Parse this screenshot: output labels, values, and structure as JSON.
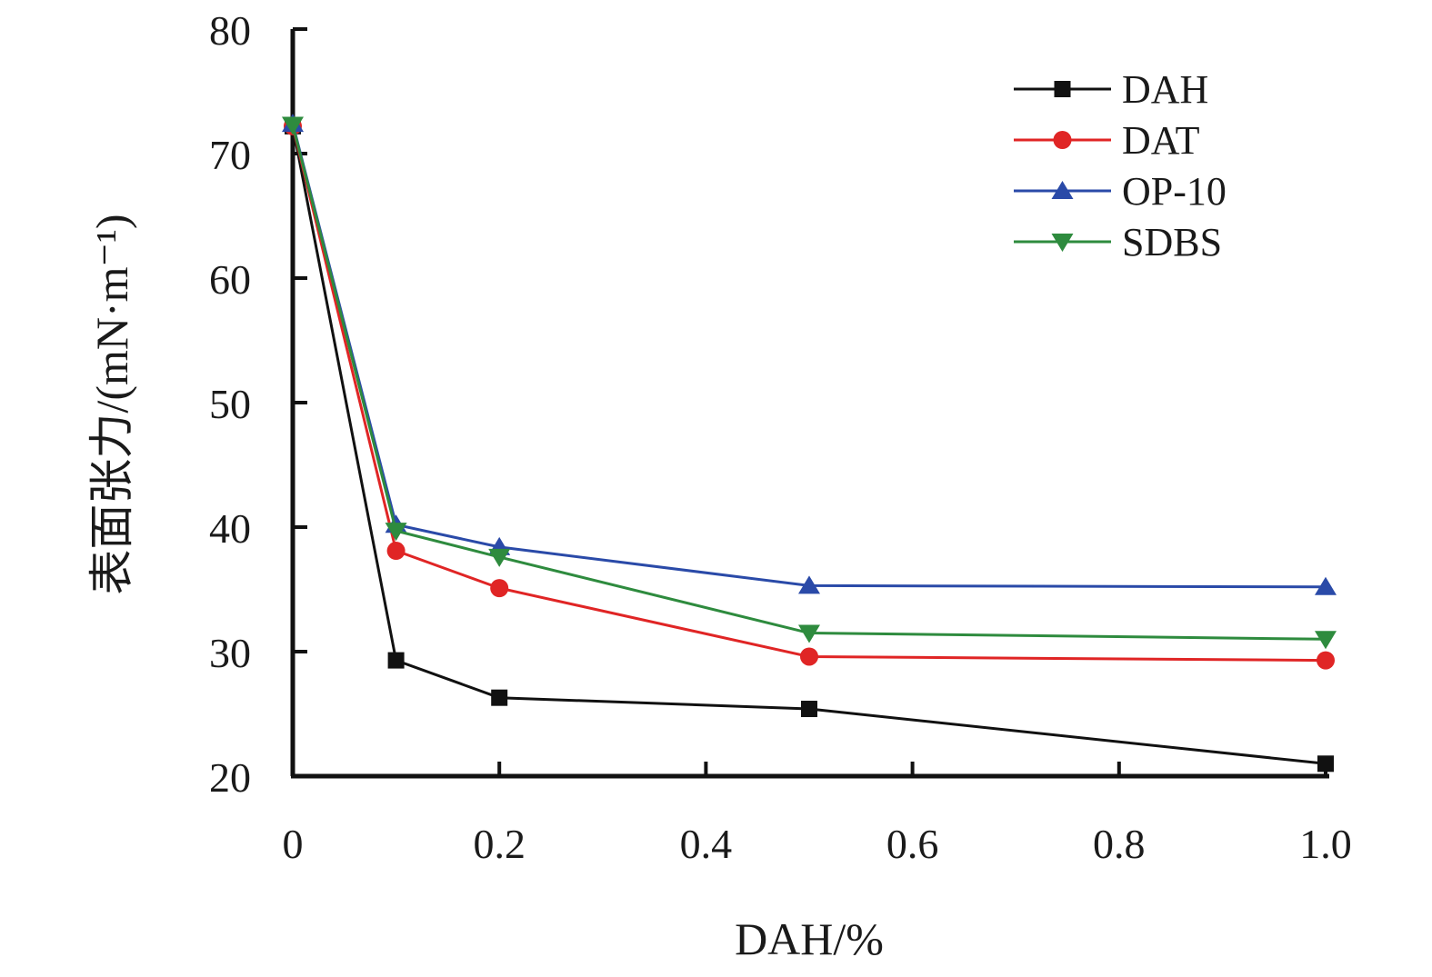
{
  "chart_data": {
    "type": "line",
    "title": "",
    "xlabel": "DAH/%",
    "ylabel": "表面张力/(mN·m⁻¹)",
    "xlim": [
      0,
      1.0
    ],
    "ylim": [
      20,
      80
    ],
    "xticks": [
      0,
      0.2,
      0.4,
      0.6,
      0.8,
      1.0
    ],
    "xtick_labels": [
      "0",
      "0.2",
      "0.4",
      "0.6",
      "0.8",
      "1.0"
    ],
    "yticks": [
      20,
      30,
      40,
      50,
      60,
      70,
      80
    ],
    "ytick_labels": [
      "20",
      "30",
      "40",
      "50",
      "60",
      "70",
      "80"
    ],
    "grid": false,
    "legend_position": "top-right",
    "x": [
      0,
      0.1,
      0.2,
      0.5,
      1.0
    ],
    "series": [
      {
        "name": "DAH",
        "color": "#111111",
        "marker": "square",
        "values": [
          72.2,
          29.3,
          26.3,
          25.4,
          21.0
        ]
      },
      {
        "name": "DAT",
        "color": "#e02525",
        "marker": "circle",
        "values": [
          72.2,
          38.1,
          35.1,
          29.6,
          29.3
        ]
      },
      {
        "name": "OP-10",
        "color": "#2a4aa8",
        "marker": "triangle-up",
        "values": [
          72.4,
          40.2,
          38.4,
          35.3,
          35.2
        ]
      },
      {
        "name": "SDBS",
        "color": "#2e8b3e",
        "marker": "triangle-down",
        "values": [
          72.3,
          39.7,
          37.6,
          31.5,
          31.0
        ]
      }
    ]
  }
}
